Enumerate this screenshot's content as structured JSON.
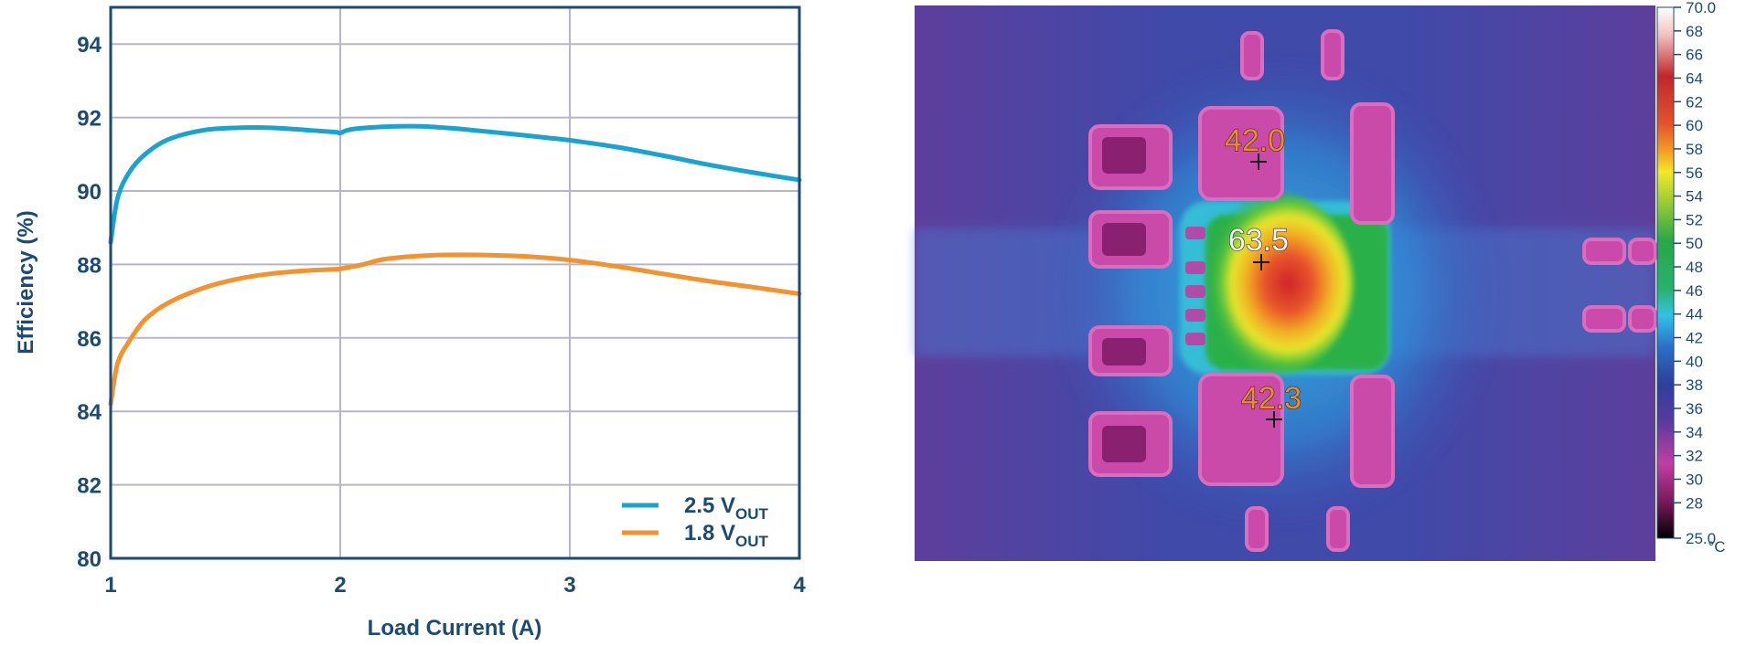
{
  "chart_data": [
    {
      "type": "line",
      "title": "",
      "xlabel": "Load Current (A)",
      "ylabel": "Efficiency (%)",
      "xlim": [
        1,
        4
      ],
      "ylim": [
        80,
        95
      ],
      "x_ticks": [
        "1",
        "2",
        "3",
        "4"
      ],
      "y_ticks": [
        "80",
        "82",
        "84",
        "86",
        "88",
        "90",
        "92",
        "94"
      ],
      "grid": true,
      "legend": "bottom-right",
      "series": [
        {
          "name": "2.5 V",
          "subscript": "OUT",
          "color": "#1ba3cf",
          "x": [
            1.0,
            1.03,
            1.08,
            1.15,
            1.25,
            1.4,
            1.55,
            1.7,
            1.85,
            1.98,
            2.0,
            2.05,
            2.2,
            2.35,
            2.5,
            2.7,
            2.9,
            3.0,
            3.2,
            3.4,
            3.6,
            3.8,
            4.0
          ],
          "y": [
            88.6,
            89.8,
            90.5,
            91.0,
            91.4,
            91.65,
            91.72,
            91.72,
            91.66,
            91.6,
            91.58,
            91.68,
            91.75,
            91.76,
            91.7,
            91.58,
            91.45,
            91.38,
            91.2,
            90.97,
            90.72,
            90.5,
            90.3
          ]
        },
        {
          "name": "1.8 V",
          "subscript": "OUT",
          "color": "#f29330",
          "x": [
            1.0,
            1.03,
            1.08,
            1.15,
            1.25,
            1.4,
            1.55,
            1.7,
            1.85,
            1.98,
            2.0,
            2.1,
            2.2,
            2.4,
            2.6,
            2.8,
            3.0,
            3.2,
            3.4,
            3.6,
            3.8,
            4.0
          ],
          "y": [
            84.2,
            85.3,
            85.9,
            86.5,
            86.95,
            87.35,
            87.6,
            87.75,
            87.83,
            87.87,
            87.88,
            88.0,
            88.15,
            88.25,
            88.26,
            88.22,
            88.12,
            87.95,
            87.75,
            87.55,
            87.38,
            87.2
          ]
        }
      ]
    },
    {
      "type": "heatmap",
      "colorbar": {
        "unit": "°C",
        "min": 25.0,
        "max": 70.0,
        "labels": [
          "70.0",
          "68",
          "66",
          "64",
          "62",
          "60",
          "58",
          "56",
          "54",
          "52",
          "50",
          "48",
          "46",
          "44",
          "42",
          "40",
          "38",
          "36",
          "34",
          "32",
          "30",
          "28",
          "25.0"
        ],
        "colors": [
          "#ffffff",
          "#f2c4c4",
          "#c1262a",
          "#e4542a",
          "#f39c25",
          "#f2e928",
          "#28a747",
          "#27b26b",
          "#34c2e6",
          "#2a6fc7",
          "#2f3f9a",
          "#5a3a9e",
          "#c23ea2",
          "#7a1a5e",
          "#000000"
        ]
      },
      "markers": [
        {
          "label": "42.0",
          "value": 42.0,
          "color": "#f28a2a"
        },
        {
          "label": "63.5",
          "value": 63.5,
          "color": "#f2f2f2"
        },
        {
          "label": "42.3",
          "value": 42.3,
          "color": "#f28a2a"
        }
      ]
    }
  ]
}
